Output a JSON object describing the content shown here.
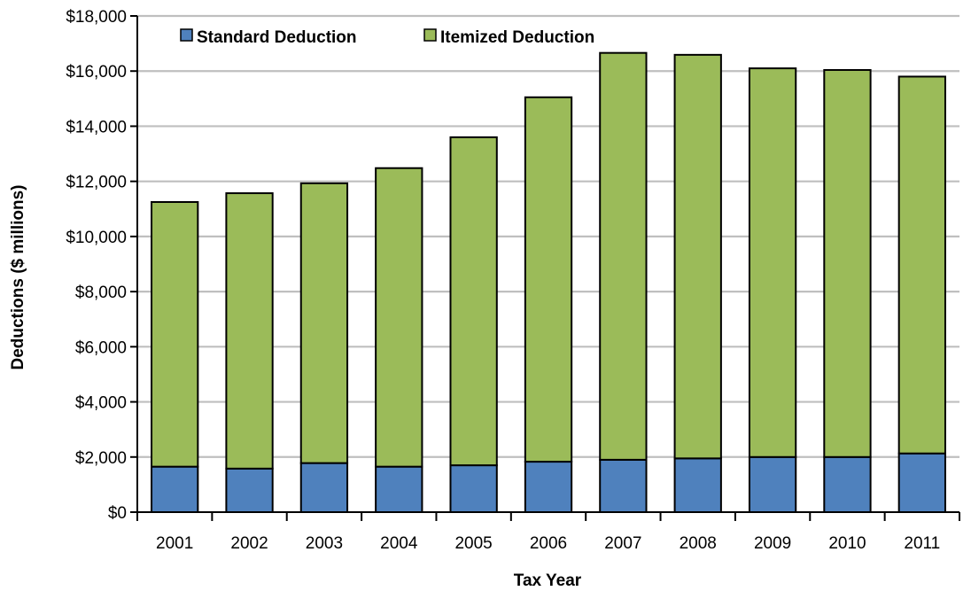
{
  "chart_data": {
    "type": "bar",
    "stacked": true,
    "title": "",
    "xlabel": "Tax Year",
    "ylabel": "Deductions ($ millions)",
    "categories": [
      "2001",
      "2002",
      "2003",
      "2004",
      "2005",
      "2006",
      "2007",
      "2008",
      "2009",
      "2010",
      "2011"
    ],
    "ylim": [
      0,
      18000
    ],
    "yticks": [
      0,
      2000,
      4000,
      6000,
      8000,
      10000,
      12000,
      14000,
      16000,
      18000
    ],
    "ytick_labels": [
      "$0",
      "$2,000",
      "$4,000",
      "$6,000",
      "$8,000",
      "$10,000",
      "$12,000",
      "$14,000",
      "$16,000",
      "$18,000"
    ],
    "grid": true,
    "legend_position": "top-left",
    "series": [
      {
        "name": "Standard Deduction",
        "color": "#4F81BD",
        "values": [
          1650,
          1580,
          1780,
          1650,
          1700,
          1830,
          1900,
          1950,
          2000,
          2000,
          2130
        ]
      },
      {
        "name": "Itemized Deduction",
        "color": "#9BBB59",
        "values": [
          9600,
          9990,
          10150,
          10830,
          11900,
          13220,
          14760,
          14640,
          14100,
          14040,
          13670
        ]
      }
    ]
  }
}
